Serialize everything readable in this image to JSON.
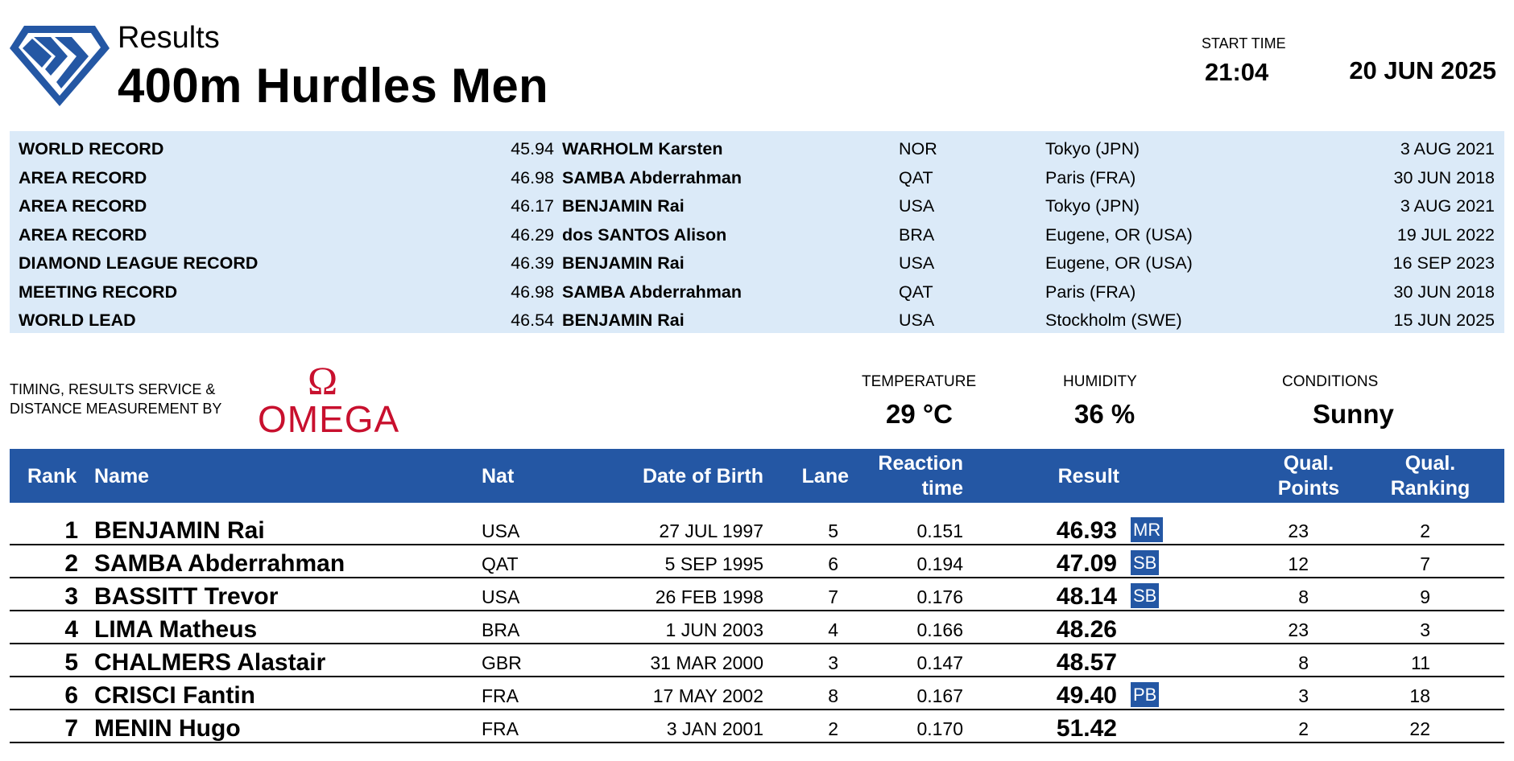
{
  "header": {
    "subtitle": "Results",
    "title": "400m Hurdles Men",
    "start_time_label": "START TIME",
    "start_time": "21:04",
    "date": "20 JUN 2025"
  },
  "records": [
    {
      "type": "WORLD RECORD",
      "mark": "45.94",
      "athlete": "WARHOLM Karsten",
      "nat": "NOR",
      "venue": "Tokyo (JPN)",
      "date": "3 AUG 2021"
    },
    {
      "type": "AREA RECORD",
      "mark": "46.98",
      "athlete": "SAMBA Abderrahman",
      "nat": "QAT",
      "venue": "Paris (FRA)",
      "date": "30 JUN 2018"
    },
    {
      "type": "AREA RECORD",
      "mark": "46.17",
      "athlete": "BENJAMIN Rai",
      "nat": "USA",
      "venue": "Tokyo (JPN)",
      "date": "3 AUG 2021"
    },
    {
      "type": "AREA RECORD",
      "mark": "46.29",
      "athlete": "dos SANTOS Alison",
      "nat": "BRA",
      "venue": "Eugene, OR (USA)",
      "date": "19 JUL 2022"
    },
    {
      "type": "DIAMOND LEAGUE RECORD",
      "mark": "46.39",
      "athlete": "BENJAMIN Rai",
      "nat": "USA",
      "venue": "Eugene, OR (USA)",
      "date": "16 SEP 2023"
    },
    {
      "type": "MEETING RECORD",
      "mark": "46.98",
      "athlete": "SAMBA Abderrahman",
      "nat": "QAT",
      "venue": "Paris (FRA)",
      "date": "30 JUN 2018"
    },
    {
      "type": "WORLD LEAD",
      "mark": "46.54",
      "athlete": "BENJAMIN Rai",
      "nat": "USA",
      "venue": "Stockholm (SWE)",
      "date": "15 JUN 2025"
    }
  ],
  "timing": {
    "label_line1": "TIMING, RESULTS SERVICE &",
    "label_line2": "DISTANCE MEASUREMENT BY",
    "omega_symbol": "Ω",
    "omega_word": "OMEGA"
  },
  "conditions": {
    "temperature_label": "TEMPERATURE",
    "temperature": "29 °C",
    "humidity_label": "HUMIDITY",
    "humidity": "36 %",
    "conditions_label": "CONDITIONS",
    "conditions": "Sunny"
  },
  "table_headers": {
    "rank": "Rank",
    "name": "Name",
    "nat": "Nat",
    "dob": "Date of Birth",
    "lane": "Lane",
    "reaction_line1": "Reaction",
    "reaction_line2": "time",
    "result": "Result",
    "points_line1": "Qual.",
    "points_line2": "Points",
    "ranking_line1": "Qual.",
    "ranking_line2": "Ranking"
  },
  "results": [
    {
      "rank": "1",
      "name": "BENJAMIN Rai",
      "nat": "USA",
      "dob": "27 JUL 1997",
      "lane": "5",
      "reaction": "0.151",
      "result": "46.93",
      "badge": "MR",
      "points": "23",
      "ranking": "2"
    },
    {
      "rank": "2",
      "name": "SAMBA Abderrahman",
      "nat": "QAT",
      "dob": "5 SEP 1995",
      "lane": "6",
      "reaction": "0.194",
      "result": "47.09",
      "badge": "SB",
      "points": "12",
      "ranking": "7"
    },
    {
      "rank": "3",
      "name": "BASSITT Trevor",
      "nat": "USA",
      "dob": "26 FEB 1998",
      "lane": "7",
      "reaction": "0.176",
      "result": "48.14",
      "badge": "SB",
      "points": "8",
      "ranking": "9"
    },
    {
      "rank": "4",
      "name": "LIMA Matheus",
      "nat": "BRA",
      "dob": "1 JUN 2003",
      "lane": "4",
      "reaction": "0.166",
      "result": "48.26",
      "badge": "",
      "points": "23",
      "ranking": "3"
    },
    {
      "rank": "5",
      "name": "CHALMERS Alastair",
      "nat": "GBR",
      "dob": "31 MAR 2000",
      "lane": "3",
      "reaction": "0.147",
      "result": "48.57",
      "badge": "",
      "points": "8",
      "ranking": "11"
    },
    {
      "rank": "6",
      "name": "CRISCI Fantin",
      "nat": "FRA",
      "dob": "17 MAY 2002",
      "lane": "8",
      "reaction": "0.167",
      "result": "49.40",
      "badge": "PB",
      "points": "3",
      "ranking": "18"
    },
    {
      "rank": "7",
      "name": "MENIN Hugo",
      "nat": "FRA",
      "dob": "3 JAN 2001",
      "lane": "2",
      "reaction": "0.170",
      "result": "51.42",
      "badge": "",
      "points": "2",
      "ranking": "22"
    }
  ],
  "colors": {
    "accent_blue": "#2457a4",
    "record_band": "#dbeaf8",
    "omega_red": "#c8102e"
  },
  "icons": {
    "logo": "diamond-league-logo"
  }
}
